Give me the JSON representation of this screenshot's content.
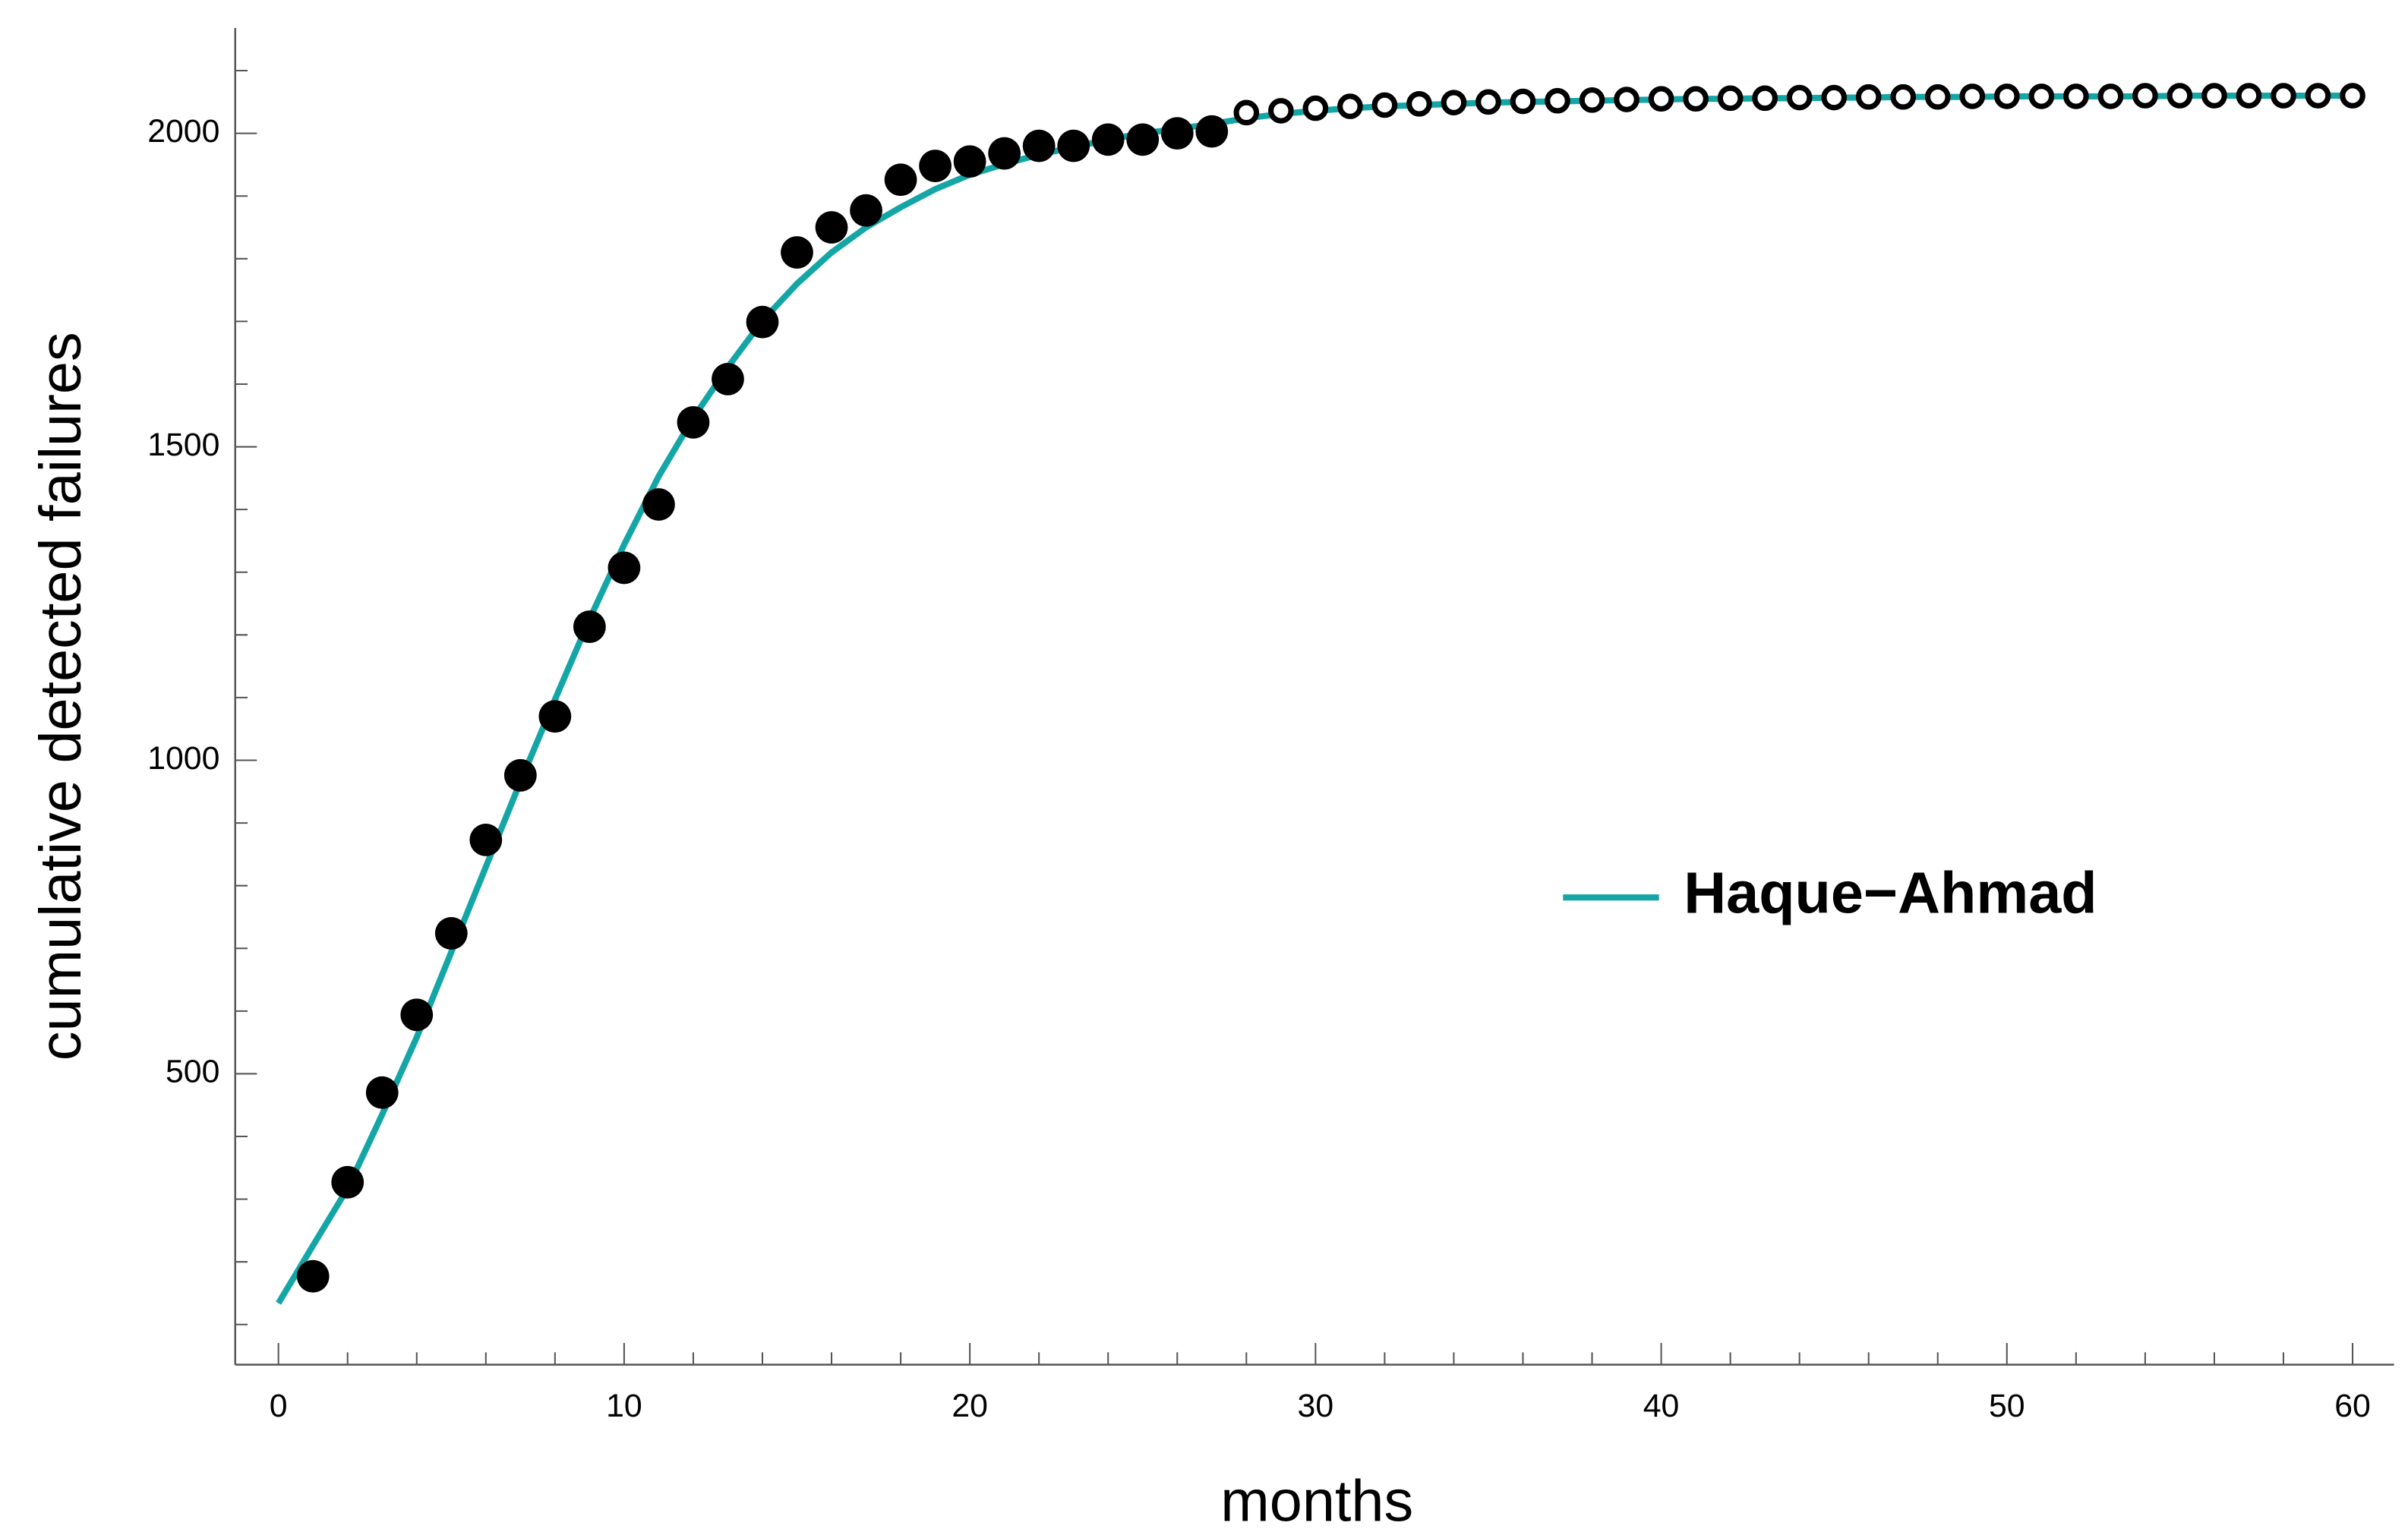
{
  "chart_data": {
    "type": "line",
    "xlabel": "months",
    "ylabel": "cumulative detected failures",
    "xlim": [
      -1.25,
      61.2
    ],
    "ylim": [
      36,
      2168
    ],
    "xticks": [
      0,
      10,
      20,
      30,
      40,
      50,
      60
    ],
    "xminorticks": [
      2,
      4,
      6,
      8,
      12,
      14,
      16,
      18,
      22,
      24,
      26,
      28,
      32,
      34,
      36,
      38,
      42,
      44,
      46,
      48,
      52,
      54,
      56,
      58
    ],
    "yticks": [
      500,
      1000,
      1500,
      2000
    ],
    "yminorticks": [
      100,
      200,
      300,
      400,
      600,
      700,
      800,
      900,
      1100,
      1200,
      1300,
      1400,
      1600,
      1700,
      1800,
      1900,
      2100
    ],
    "legend": "right",
    "series": [
      {
        "name": "Haque−Ahmad",
        "color": "#14a6a6",
        "style": "line",
        "x": [
          0,
          1,
          2,
          3,
          4,
          5,
          6,
          7,
          8,
          9,
          10,
          11,
          12,
          13,
          14,
          15,
          16,
          17,
          18,
          19,
          20,
          21,
          22,
          23,
          24,
          25,
          26,
          27,
          28,
          29,
          30,
          31,
          32,
          33,
          34,
          35,
          36,
          37,
          38,
          39,
          40,
          41,
          42,
          43,
          44,
          45,
          46,
          47,
          48,
          49,
          50,
          51,
          52,
          53,
          54,
          55,
          56,
          57,
          58,
          59,
          60
        ],
        "values": [
          134,
          226,
          317,
          435,
          558,
          694,
          830,
          966,
          1097,
          1225,
          1344,
          1453,
          1546,
          1627,
          1701,
          1760,
          1810,
          1850,
          1882,
          1911,
          1934,
          1951,
          1966,
          1978,
          1990,
          2000,
          2007,
          2015,
          2024,
          2031,
          2036,
          2040,
          2043,
          2045,
          2047,
          2049,
          2050,
          2051,
          2052,
          2053,
          2054,
          2055,
          2055,
          2056,
          2056,
          2057,
          2057,
          2058,
          2058,
          2058,
          2059,
          2059,
          2059,
          2059,
          2059,
          2060,
          2060,
          2060,
          2060,
          2060,
          2060
        ]
      },
      {
        "color": "#000000",
        "style": "filled-markers",
        "x": [
          1,
          2,
          3,
          4,
          5,
          6,
          7,
          8,
          9,
          10,
          11,
          12,
          13,
          14,
          15,
          16,
          17,
          18,
          19,
          20,
          21,
          22,
          23,
          24,
          25,
          26,
          27
        ],
        "values": [
          177,
          327,
          470,
          594,
          724,
          873,
          976,
          1070,
          1213,
          1307,
          1408,
          1539,
          1608,
          1699,
          1810,
          1850,
          1877,
          1926,
          1948,
          1955,
          1968,
          1980,
          1980,
          1990,
          1990,
          2000,
          2003
        ]
      },
      {
        "color": "#000000",
        "style": "open-markers",
        "x": [
          28,
          29,
          30,
          31,
          32,
          33,
          34,
          35,
          36,
          37,
          38,
          39,
          40,
          41,
          42,
          43,
          44,
          45,
          46,
          47,
          48,
          49,
          50,
          51,
          52,
          53,
          54,
          55,
          56,
          57,
          58,
          59,
          60
        ],
        "values": [
          2033,
          2036,
          2040,
          2043,
          2045,
          2047,
          2049,
          2050,
          2051,
          2052,
          2053,
          2054,
          2055,
          2055,
          2056,
          2056,
          2057,
          2057,
          2058,
          2058,
          2058,
          2059,
          2059,
          2059,
          2059,
          2059,
          2060,
          2060,
          2060,
          2060,
          2060,
          2060,
          2060
        ]
      }
    ]
  }
}
